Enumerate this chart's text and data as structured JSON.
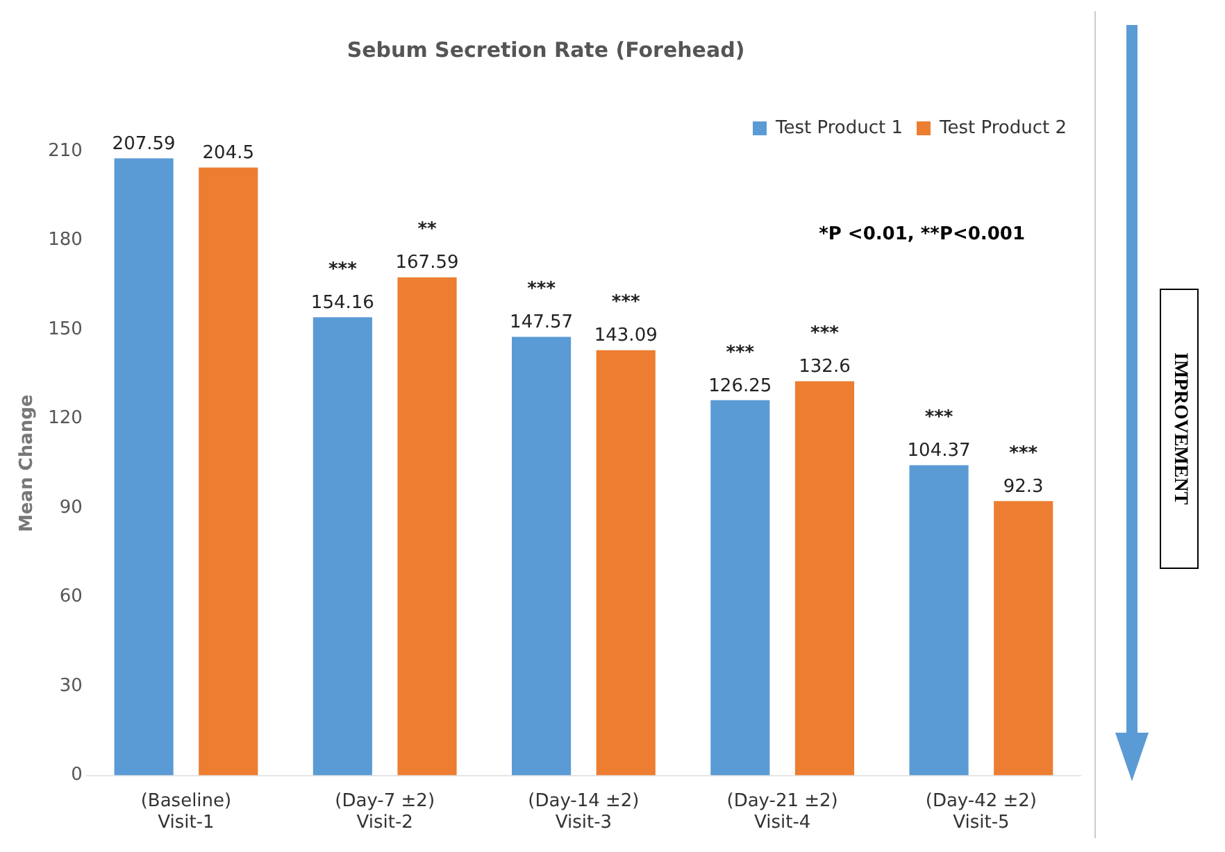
{
  "chart_data": {
    "type": "bar",
    "title": "Sebum Secretion Rate (Forehead)",
    "ylabel": "Mean Change",
    "categories": [
      "(Baseline)\nVisit-1",
      "(Day-7 ±2)\nVisit-2",
      "(Day-14 ±2)\nVisit-3",
      "(Day-21 ±2)\nVisit-4",
      "(Day-42 ±2)\nVisit-5"
    ],
    "series": [
      {
        "name": "Test Product 1",
        "color": "#5b9bd5",
        "values": [
          207.59,
          154.16,
          147.57,
          126.25,
          104.37
        ],
        "value_labels": [
          "207.59",
          "***\n154.16",
          "***\n147.57",
          "***\n126.25",
          "***\n104.37"
        ]
      },
      {
        "name": "Test Product 2",
        "color": "#ed7d31",
        "values": [
          204.5,
          167.59,
          143.09,
          132.6,
          92.3
        ],
        "value_labels": [
          "204.5",
          "**\n167.59",
          "***\n143.09",
          "***\n132.6",
          "***\n92.3"
        ]
      }
    ],
    "ylim": [
      0,
      210
    ],
    "yticks": [
      0,
      30,
      60,
      90,
      120,
      150,
      180,
      210
    ],
    "grid": false,
    "legend": "top right",
    "annotations": [
      "*P <0.01, **P<0.001",
      "IMPROVEMENT"
    ]
  }
}
